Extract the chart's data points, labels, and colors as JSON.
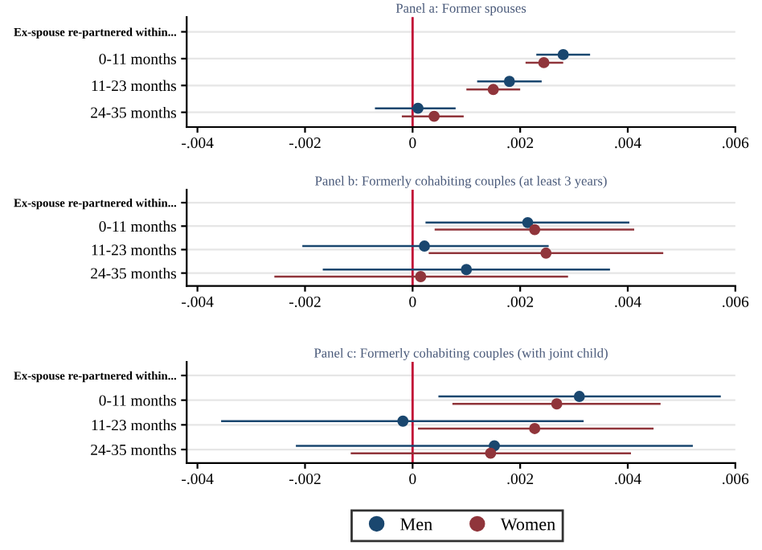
{
  "chart_data": [
    {
      "type": "scatter",
      "orientation": "horizontal",
      "title": "Panel a: Former spouses",
      "categories": [
        "Ex-spouse re-partnered within...",
        "0-11 months",
        "11-23 months",
        "24-35 months"
      ],
      "xlim": [
        -0.0042,
        0.006
      ],
      "xticks": [
        {
          "value": -0.004,
          "label": "-.004"
        },
        {
          "value": -0.002,
          "label": "-.002"
        },
        0,
        {
          "value": 0.002,
          "label": ".002"
        },
        {
          "value": 0.004,
          "label": ".004"
        },
        {
          "value": 0.006,
          "label": ".006"
        }
      ],
      "grid": "y",
      "marker": "circle",
      "legend": "bottom",
      "ref_lines": [
        {
          "axis": "x",
          "value": 0,
          "color": "#c10534"
        }
      ],
      "series": [
        {
          "name": "Men",
          "color": "#1a476f",
          "values": [
            null,
            0.0028,
            0.0018,
            0.0001
          ],
          "errors": [
            null,
            [
              0.0023,
              0.0033
            ],
            [
              0.0012,
              0.0024
            ],
            [
              -0.0007,
              0.0008
            ]
          ]
        },
        {
          "name": "Women",
          "color": "#90353b",
          "values": [
            null,
            0.00244,
            0.0015,
            0.0004
          ],
          "errors": [
            null,
            [
              0.0021,
              0.0028
            ],
            [
              0.001,
              0.002
            ],
            [
              -0.0002,
              0.00095
            ]
          ]
        }
      ]
    },
    {
      "type": "scatter",
      "orientation": "horizontal",
      "title": "Panel b: Formerly cohabiting couples (at least 3 years)",
      "categories": [
        "Ex-spouse re-partnered within...",
        "0-11 months",
        "11-23 months",
        "24-35 months"
      ],
      "xlim": [
        -0.0042,
        0.006
      ],
      "xticks": [
        {
          "value": -0.004,
          "label": "-.004"
        },
        {
          "value": -0.002,
          "label": "-.002"
        },
        0,
        {
          "value": 0.002,
          "label": ".002"
        },
        {
          "value": 0.004,
          "label": ".004"
        },
        {
          "value": 0.006,
          "label": ".006"
        }
      ],
      "grid": "y",
      "marker": "circle",
      "ref_lines": [
        {
          "axis": "x",
          "value": 0,
          "color": "#c10534"
        }
      ],
      "series": [
        {
          "color": "#1a476f",
          "values": [
            null,
            0.00214,
            0.00022,
            0.001
          ],
          "errors": [
            null,
            [
              0.00024,
              0.00403
            ],
            [
              -0.00205,
              0.00253
            ],
            [
              -0.00167,
              0.00367
            ]
          ]
        },
        {
          "color": "#90353b",
          "values": [
            null,
            0.00227,
            0.00248,
            0.00015
          ],
          "errors": [
            null,
            [
              0.00041,
              0.00412
            ],
            [
              0.0003,
              0.00466
            ],
            [
              -0.00257,
              0.00289
            ]
          ]
        }
      ]
    },
    {
      "type": "scatter",
      "orientation": "horizontal",
      "title": "Panel c: Formerly cohabiting couples (with joint child)",
      "categories": [
        "Ex-spouse re-partnered within...",
        "0-11 months",
        "11-23 months",
        "24-35 months"
      ],
      "xlim": [
        -0.0042,
        0.006
      ],
      "xticks": [
        {
          "value": -0.004,
          "label": "-.004"
        },
        {
          "value": -0.002,
          "label": "-.002"
        },
        0,
        {
          "value": 0.002,
          "label": ".002"
        },
        {
          "value": 0.004,
          "label": ".004"
        },
        {
          "value": 0.006,
          "label": ".006"
        }
      ],
      "grid": "y",
      "marker": "circle",
      "ref_lines": [
        {
          "axis": "x",
          "value": 0,
          "color": "#c10534"
        }
      ],
      "series": [
        {
          "color": "#1a476f",
          "values": [
            null,
            0.0031,
            -0.00018,
            0.00152
          ],
          "errors": [
            null,
            [
              0.00048,
              0.00573
            ],
            [
              -0.00356,
              0.00318
            ],
            [
              -0.00217,
              0.00521
            ]
          ]
        },
        {
          "color": "#90353b",
          "values": [
            null,
            0.00268,
            0.00227,
            0.00145
          ],
          "errors": [
            null,
            [
              0.00074,
              0.00461
            ],
            [
              0.0001,
              0.00448
            ],
            [
              -0.00115,
              0.00406
            ]
          ]
        }
      ]
    }
  ]
}
